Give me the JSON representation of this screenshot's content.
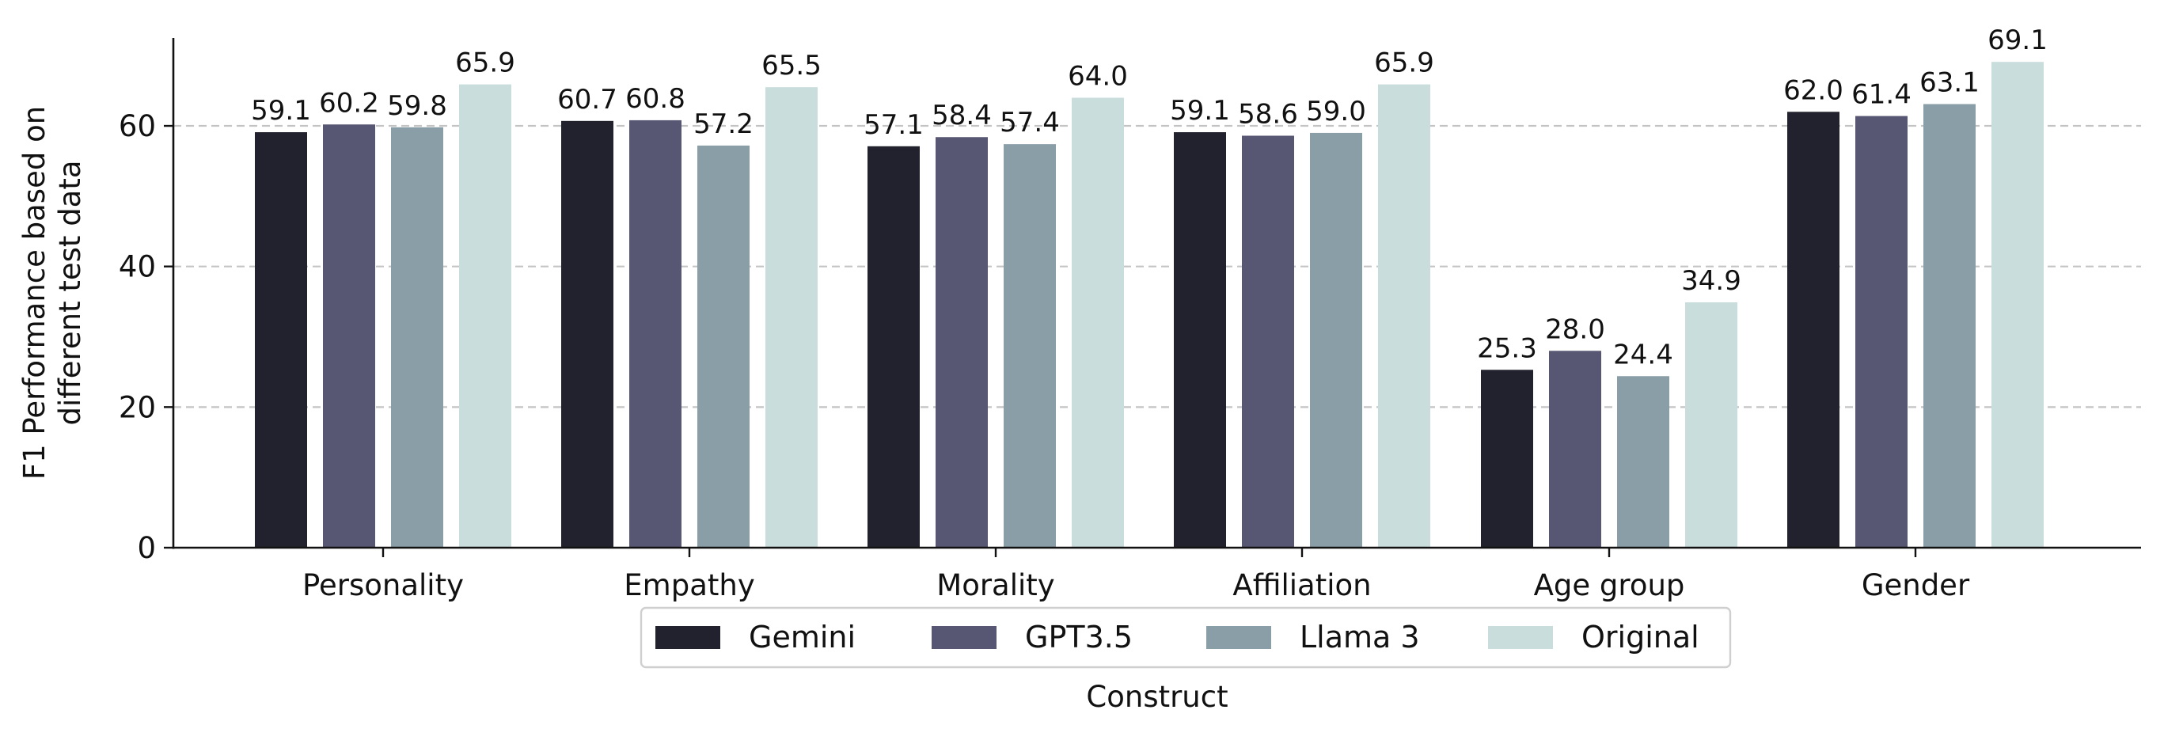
{
  "chart_data": {
    "type": "bar",
    "title": "",
    "xlabel": "Construct",
    "ylabel": "F1 Performance based on\ndifferent test data",
    "ylim": [
      0,
      72.5
    ],
    "yticks": [
      0,
      20,
      40,
      60
    ],
    "grid": "horizontal dashed at 20, 40, 60",
    "legend_position": "bottom-center",
    "categories": [
      "Personality",
      "Empathy",
      "Morality",
      "Affiliation",
      "Age group",
      "Gender"
    ],
    "series": [
      {
        "name": "Gemini",
        "color": "#22222e",
        "values": [
          59.1,
          60.7,
          57.1,
          59.1,
          25.3,
          62.0
        ]
      },
      {
        "name": "GPT3.5",
        "color": "#575673",
        "values": [
          60.2,
          60.8,
          58.4,
          58.6,
          28.0,
          61.4
        ]
      },
      {
        "name": "Llama 3",
        "color": "#8a9ea8",
        "values": [
          59.8,
          57.2,
          57.4,
          59.0,
          24.4,
          63.1
        ]
      },
      {
        "name": "Original",
        "color": "#c9dddc",
        "values": [
          65.9,
          65.5,
          64.0,
          65.9,
          34.9,
          69.1
        ]
      }
    ]
  }
}
